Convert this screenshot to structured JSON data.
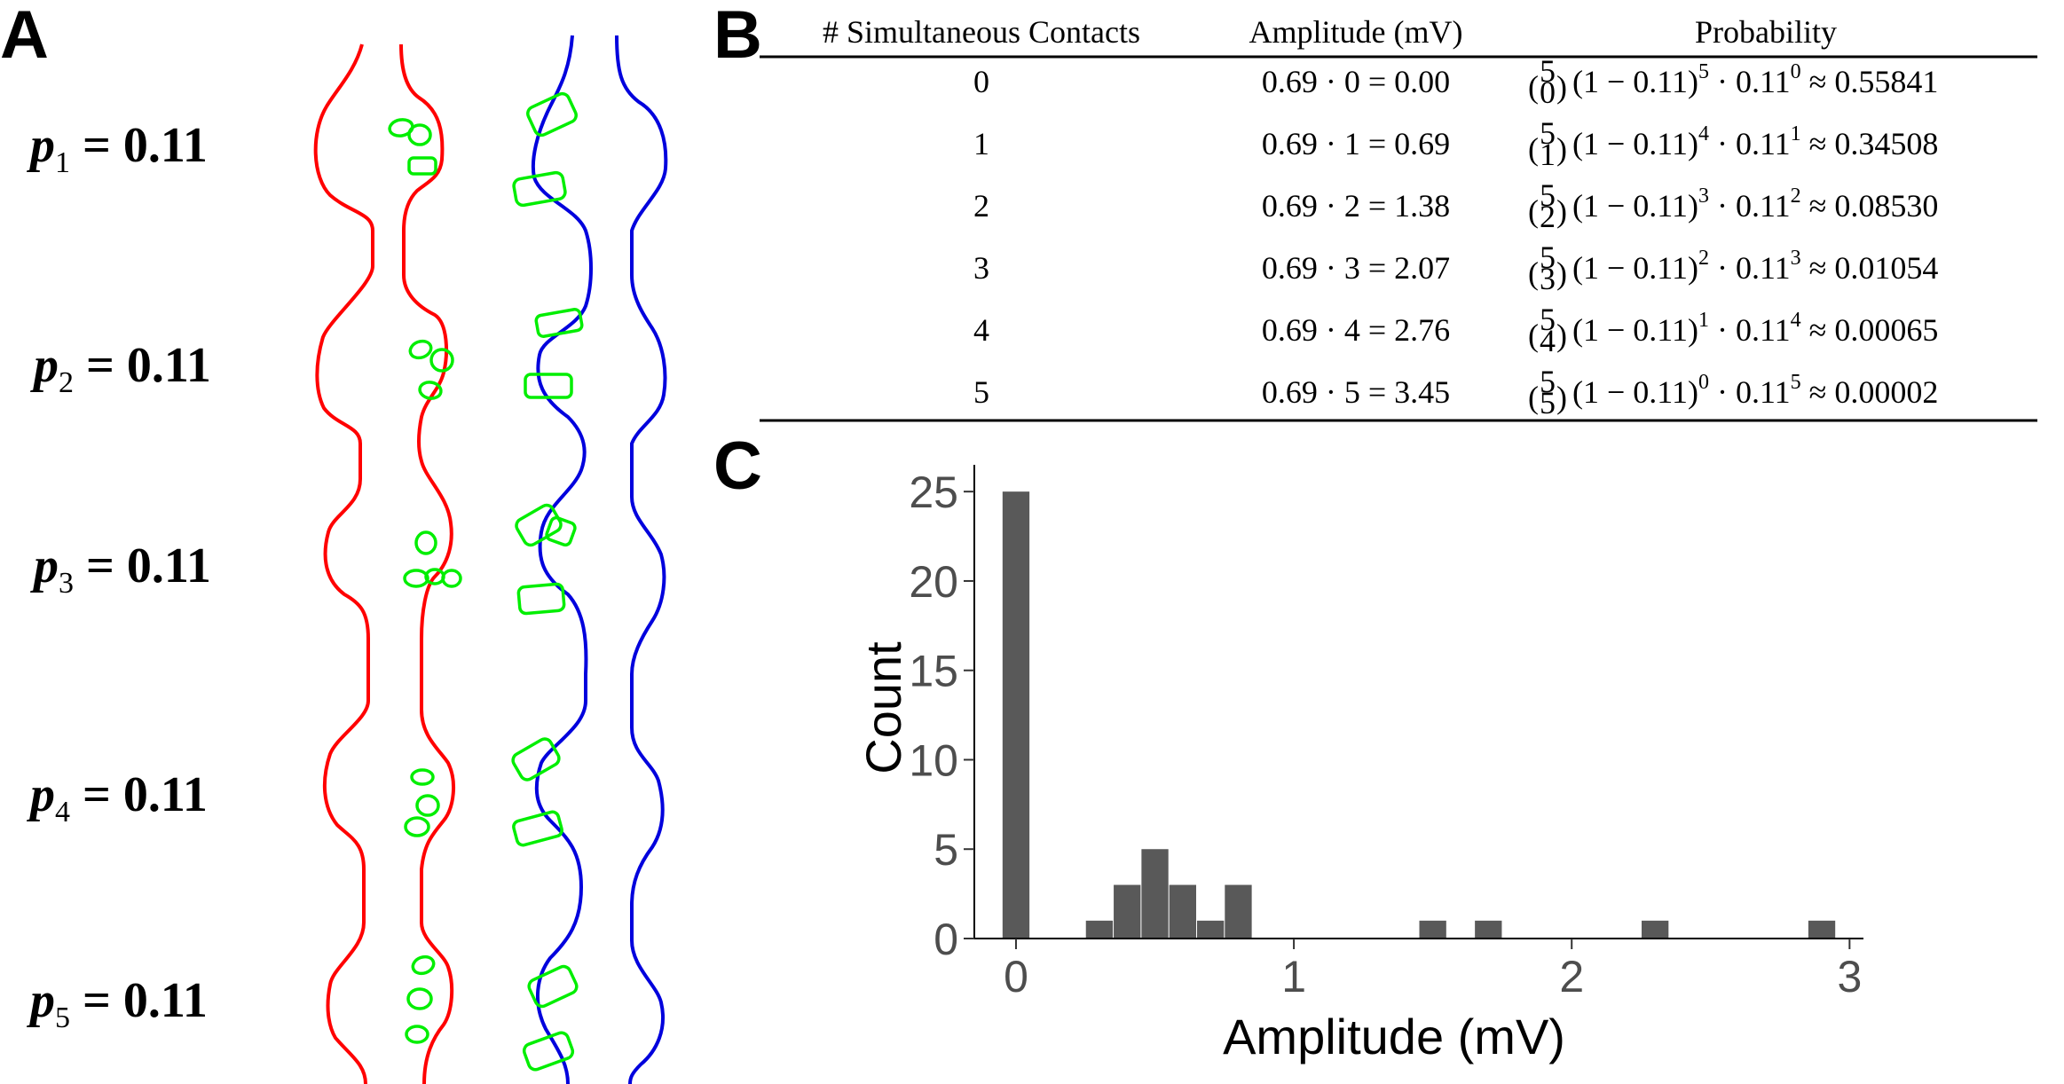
{
  "panels": {
    "a": "A",
    "b": "B",
    "c": "C"
  },
  "panel_a": {
    "sites": [
      {
        "var": "p",
        "sub": "1",
        "eq": " = 0.11"
      },
      {
        "var": "p",
        "sub": "2",
        "eq": " = 0.11"
      },
      {
        "var": "p",
        "sub": "3",
        "eq": " = 0.11"
      },
      {
        "var": "p",
        "sub": "4",
        "eq": " = 0.11"
      },
      {
        "var": "p",
        "sub": "5",
        "eq": " = 0.11"
      }
    ],
    "colors": {
      "axon": "#ff0000",
      "dendrite": "#0000dd",
      "contacts": "#00ee00"
    }
  },
  "table": {
    "headers": [
      "# Simultaneous Contacts",
      "Amplitude (mV)",
      "Probability"
    ],
    "rows": [
      {
        "contacts": "0",
        "amplitude": "0.69 · 0 = 0.00",
        "pk": "0",
        "e1": "5",
        "e2": "0",
        "result": "≈ 0.55841"
      },
      {
        "contacts": "1",
        "amplitude": "0.69 · 1 = 0.69",
        "pk": "1",
        "e1": "4",
        "e2": "1",
        "result": "≈ 0.34508"
      },
      {
        "contacts": "2",
        "amplitude": "0.69 · 2 = 1.38",
        "pk": "2",
        "e1": "3",
        "e2": "2",
        "result": "≈ 0.08530"
      },
      {
        "contacts": "3",
        "amplitude": "0.69 · 3 = 2.07",
        "pk": "3",
        "e1": "2",
        "e2": "3",
        "result": "≈ 0.01054"
      },
      {
        "contacts": "4",
        "amplitude": "0.69 · 4 = 2.76",
        "pk": "4",
        "e1": "1",
        "e2": "4",
        "result": "≈ 0.00065"
      },
      {
        "contacts": "5",
        "amplitude": "0.69 · 5 = 3.45",
        "pk": "5",
        "e1": "0",
        "e2": "5",
        "result": "≈ 0.00002"
      }
    ],
    "binom_n": "5",
    "base": "(1 − 0.11)",
    "dot_p": " · 0.11"
  },
  "chart_data": {
    "type": "bar",
    "xlabel": "Amplitude (mV)",
    "ylabel": "Count",
    "xlim": [
      -0.15,
      3.05
    ],
    "ylim": [
      0,
      26.2
    ],
    "xticks": [
      0,
      1,
      2,
      3
    ],
    "yticks": [
      0,
      5,
      10,
      15,
      20,
      25
    ],
    "bin_width": 0.1,
    "bins": [
      {
        "x": 0.0,
        "count": 25
      },
      {
        "x": 0.3,
        "count": 1
      },
      {
        "x": 0.4,
        "count": 3
      },
      {
        "x": 0.5,
        "count": 5
      },
      {
        "x": 0.6,
        "count": 3
      },
      {
        "x": 0.7,
        "count": 1
      },
      {
        "x": 0.8,
        "count": 3
      },
      {
        "x": 1.5,
        "count": 1
      },
      {
        "x": 1.7,
        "count": 1
      },
      {
        "x": 2.3,
        "count": 1
      },
      {
        "x": 2.9,
        "count": 1
      }
    ],
    "bar_color": "#595959",
    "grid": false
  }
}
